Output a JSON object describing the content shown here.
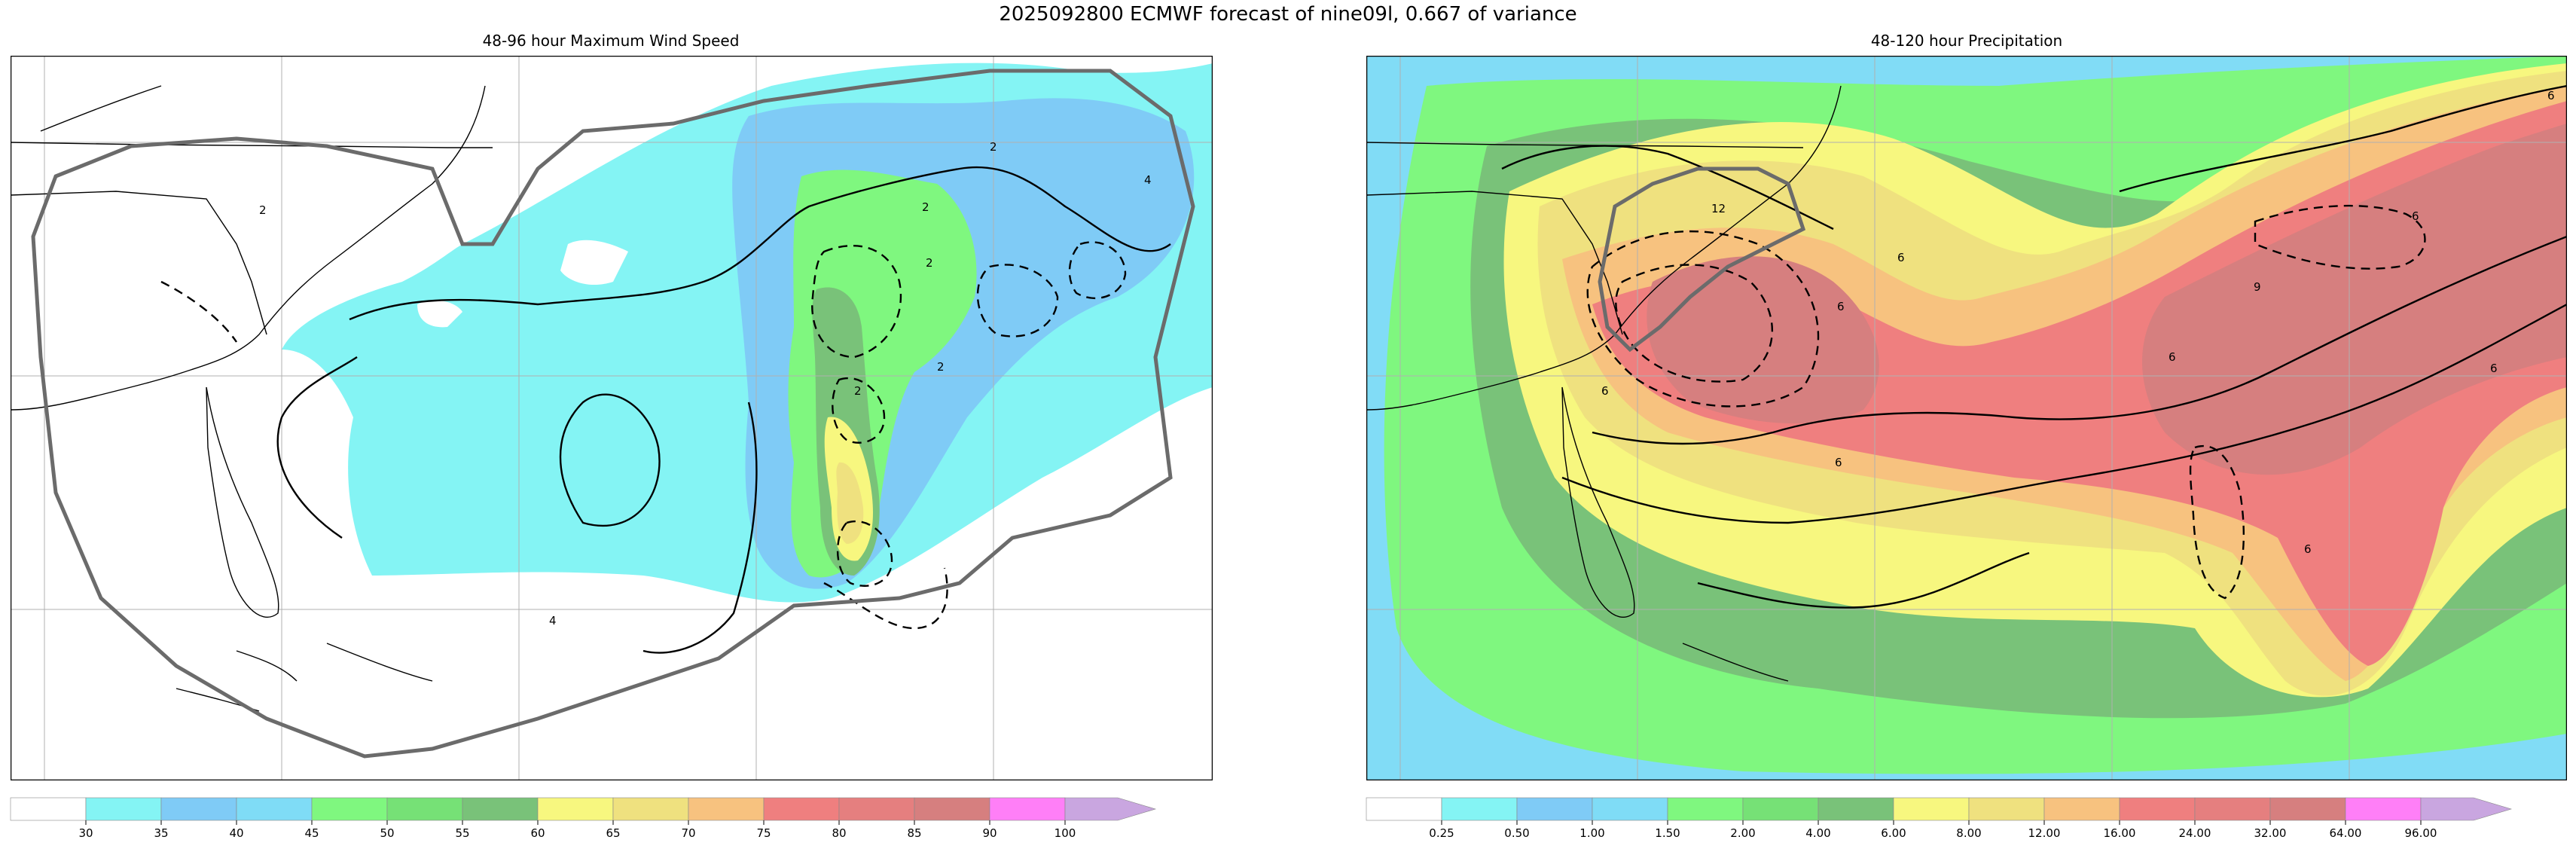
{
  "figure": {
    "title": "2025092800 ECMWF forecast of nine09l, 0.667 of variance"
  },
  "panels": [
    {
      "title": "48-96 hour Maximum Wind Speed",
      "colorbar": {
        "colors": [
          "#ffffff",
          "#84f4f4",
          "#7fcbf6",
          "#7fdcf6",
          "#7ff77f",
          "#76e176",
          "#79c279",
          "#f7f77f",
          "#efe17f",
          "#f7c27f",
          "#ef7f7f",
          "#e57f7f",
          "#d67f7f",
          "#ff7ff7",
          "#c9a6e0"
        ],
        "labels": [
          "30",
          "35",
          "40",
          "45",
          "50",
          "55",
          "60",
          "65",
          "70",
          "75",
          "80",
          "85",
          "90",
          "100"
        ]
      }
    },
    {
      "title": "48-120 hour Precipitation",
      "colorbar": {
        "colors": [
          "#ffffff",
          "#84f4f4",
          "#7fcbf6",
          "#7fdcf6",
          "#7ff77f",
          "#76e176",
          "#79c279",
          "#f7f77f",
          "#efe17f",
          "#f7c27f",
          "#ef7f7f",
          "#e57f7f",
          "#d67f7f",
          "#ff7ff7",
          "#c9a6e0"
        ],
        "labels": [
          "0.25",
          "0.50",
          "1.00",
          "1.50",
          "2.00",
          "4.00",
          "6.00",
          "8.00",
          "12.00",
          "16.00",
          "24.00",
          "32.00",
          "64.00",
          "96.00"
        ]
      }
    }
  ],
  "contour_labels": {
    "left": [
      "2",
      "2",
      "4",
      "2",
      "2",
      "2",
      "2",
      "4"
    ],
    "right": [
      "6",
      "12",
      "6",
      "6",
      "6",
      "6",
      "6",
      "9",
      "6",
      "6",
      "6"
    ]
  }
}
